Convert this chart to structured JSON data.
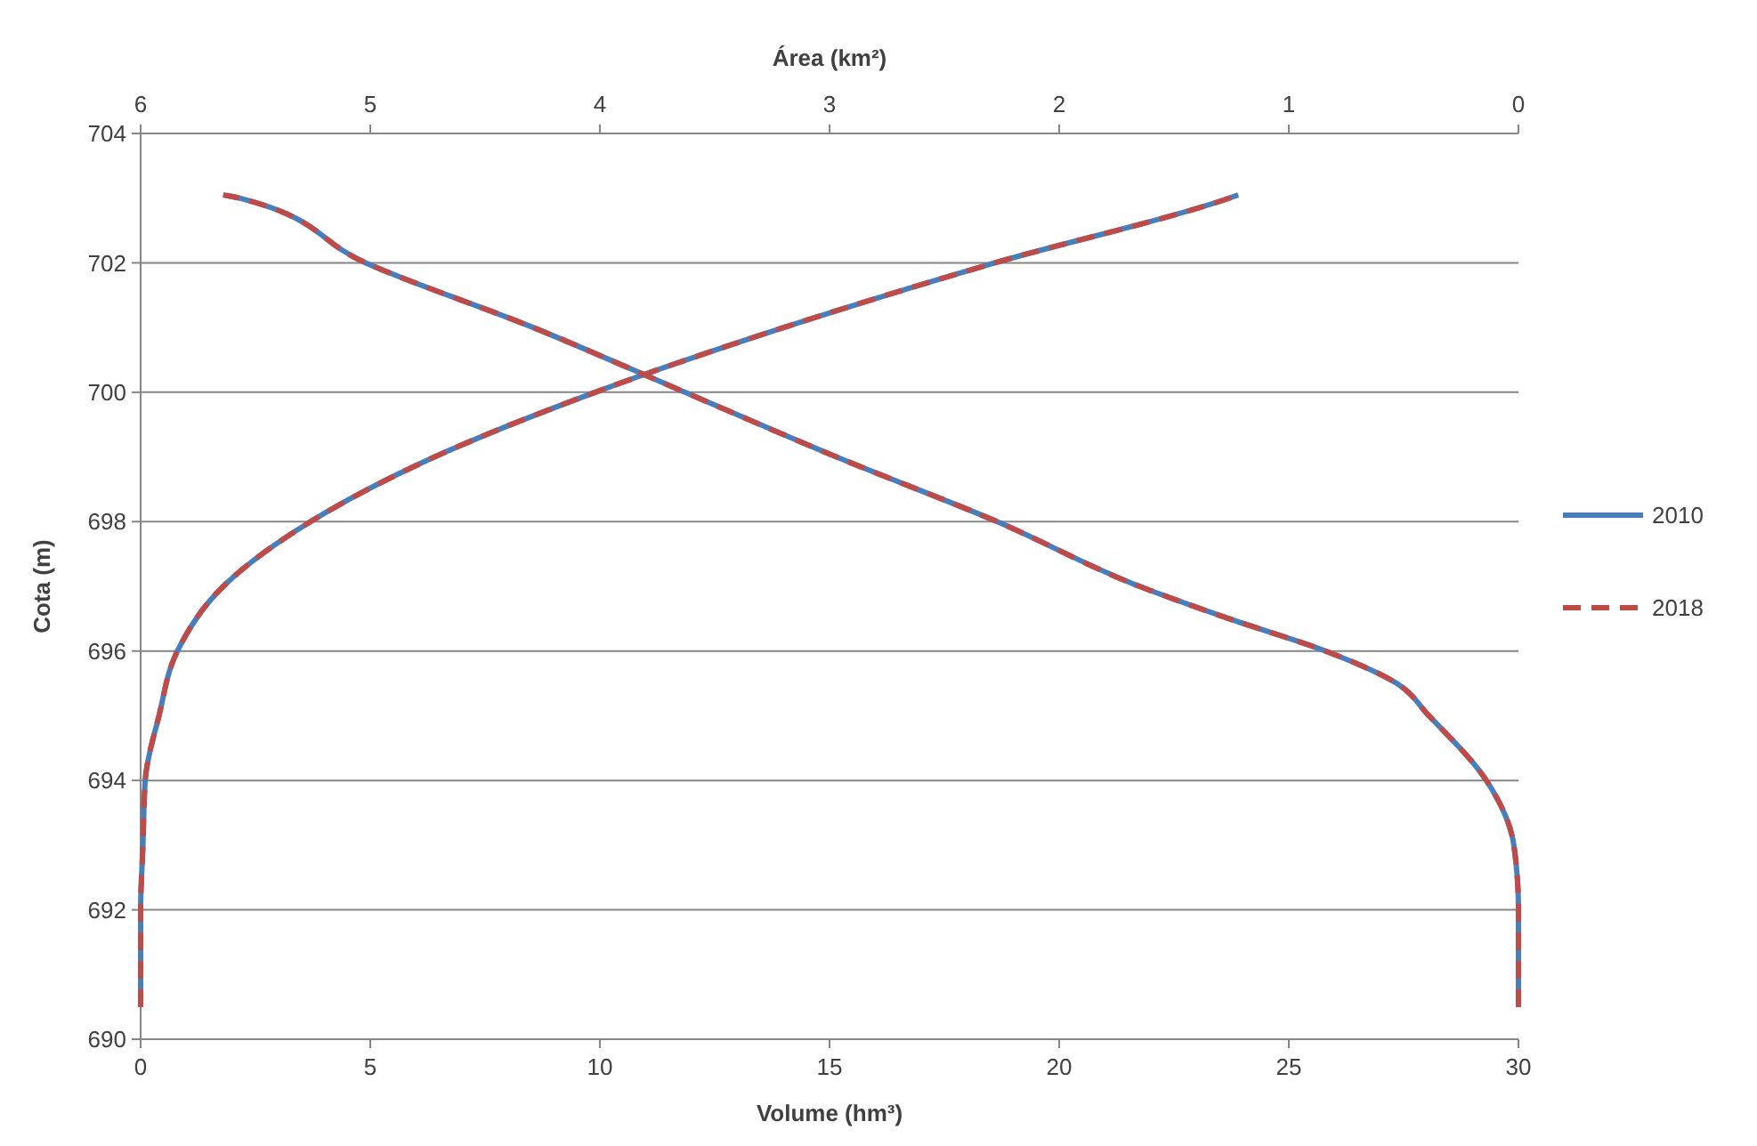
{
  "chart_data": {
    "type": "line",
    "xlabel": "Volume (hm³)",
    "x2label": "Área (km²)",
    "ylabel": "Cota (m)",
    "xlim": [
      0,
      30
    ],
    "xticks": [
      0,
      5,
      10,
      15,
      20,
      25,
      30
    ],
    "x2lim": [
      6,
      0
    ],
    "x2ticks": [
      6,
      5,
      4,
      3,
      2,
      1,
      0
    ],
    "ylim": [
      690,
      704
    ],
    "yticks": [
      690,
      692,
      694,
      696,
      698,
      700,
      702,
      704
    ],
    "grid": "y",
    "legend": "right",
    "series": [
      {
        "name": "2010",
        "color": "#4a7ebb",
        "line_style": "solid",
        "x": [
          0,
          0,
          0.05,
          0.1,
          0.4,
          0.8,
          1.8,
          3.7,
          6.4,
          9.9,
          14.0,
          18.6,
          23.7,
          23.9
        ],
        "values": [
          690.5,
          692,
          693,
          694,
          695,
          696,
          697,
          698,
          699,
          700,
          701,
          702,
          703,
          703.05
        ]
      },
      {
        "name": "2018",
        "color": "#be4b48",
        "line_style": "dashed",
        "x": [
          0,
          0,
          0.05,
          0.1,
          0.4,
          0.8,
          1.8,
          3.7,
          6.4,
          9.9,
          14.0,
          18.6,
          23.7,
          23.9
        ],
        "values": [
          690.5,
          692,
          693,
          694,
          695,
          696,
          697,
          698,
          699,
          700,
          701,
          702,
          703,
          703.05
        ]
      },
      {
        "color": "#4a7ebb",
        "line_style": "solid",
        "axis": "x2",
        "x": [
          0,
          0,
          0.02,
          0.14,
          0.39,
          0.53,
          0.84,
          1.26,
          1.65,
          2.27,
          2.97,
          3.63,
          4.29,
          5.02,
          5.57,
          5.64
        ],
        "values": [
          690.5,
          692,
          693,
          694,
          695,
          695.5,
          696,
          696.5,
          697,
          698,
          699,
          700,
          701,
          702,
          703,
          703.05
        ]
      },
      {
        "color": "#be4b48",
        "line_style": "dashed",
        "axis": "x2",
        "x": [
          0,
          0,
          0.02,
          0.14,
          0.39,
          0.53,
          0.84,
          1.26,
          1.65,
          2.27,
          2.97,
          3.63,
          4.29,
          5.02,
          5.57,
          5.64
        ],
        "values": [
          690.5,
          692,
          693,
          694,
          695,
          695.5,
          696,
          696.5,
          697,
          698,
          699,
          700,
          701,
          702,
          703,
          703.05
        ]
      }
    ]
  }
}
